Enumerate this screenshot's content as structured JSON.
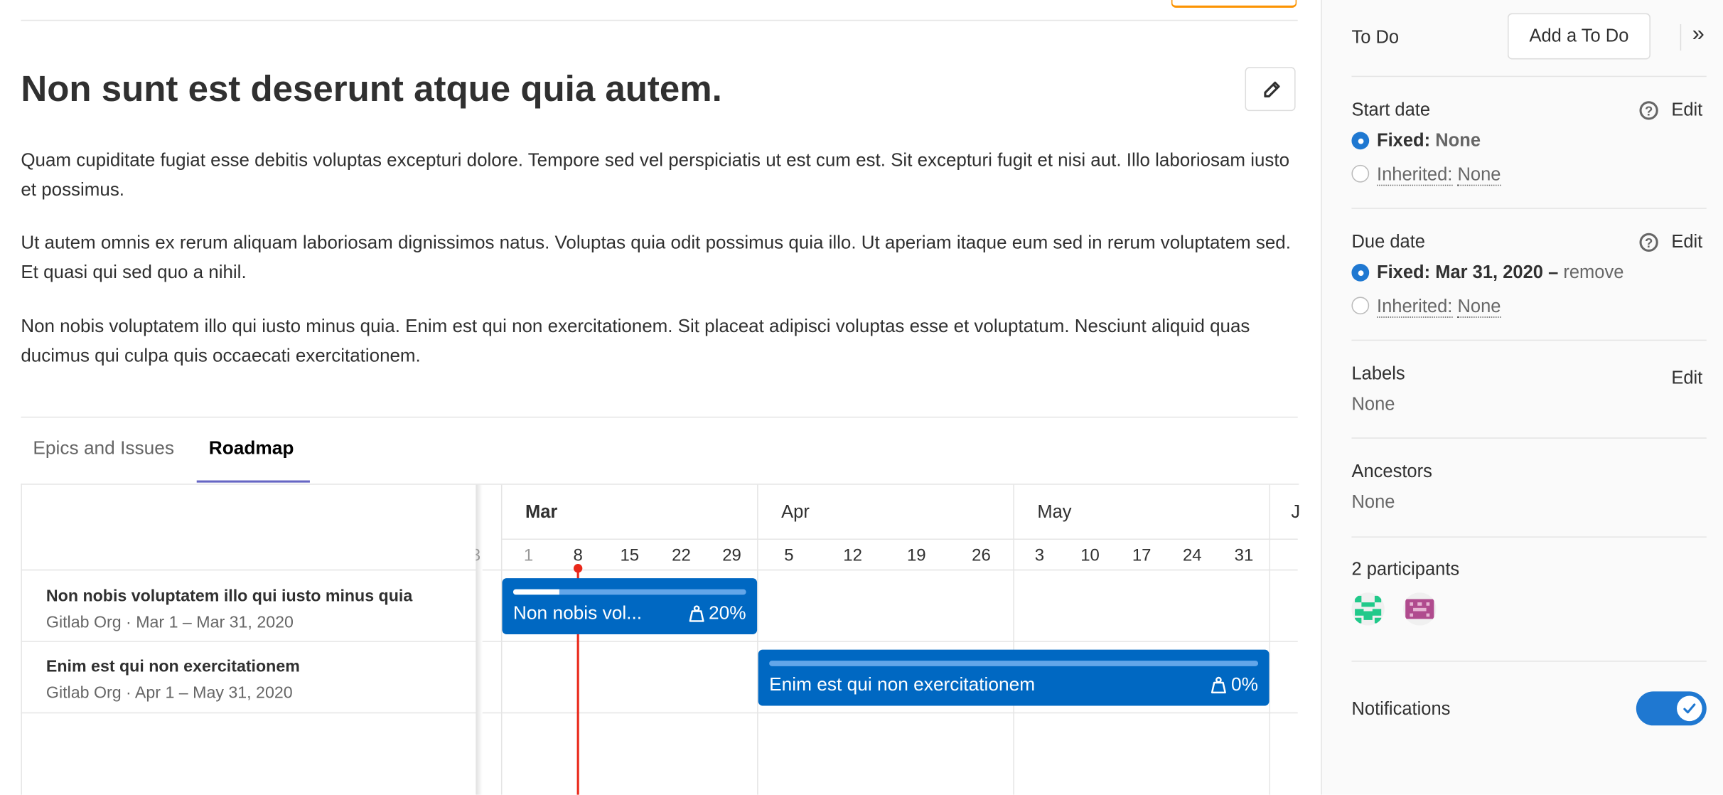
{
  "issue": {
    "title": "Non sunt est deserunt atque quia autem.",
    "paragraphs": [
      "Quam cupiditate fugiat esse debitis voluptas excepturi dolore. Tempore sed vel perspiciatis ut est cum est. Sit excepturi fugit et nisi aut. Illo laboriosam iusto et possimus.",
      "Ut autem omnis ex rerum aliquam laboriosam dignissimos natus. Voluptas quia odit possimus quia illo. Ut aperiam itaque eum sed in rerum voluptatem sed. Et quasi qui sed quo a nihil.",
      "Non nobis voluptatem illo qui iusto minus quia. Enim est qui non exercitationem. Sit placeat adipisci voluptas esse et voluptatum. Nesciunt aliquid quas ducimus qui culpa quis occaecati exercitationem."
    ],
    "edit_icon": "pencil-icon"
  },
  "tabs": [
    {
      "label": "Epics and Issues",
      "active": false
    },
    {
      "label": "Roadmap",
      "active": true
    }
  ],
  "roadmap": {
    "months": [
      "Mar",
      "Apr",
      "May",
      "J"
    ],
    "weeks": [
      "3",
      "1",
      "8",
      "15",
      "22",
      "29",
      "5",
      "12",
      "19",
      "26",
      "3",
      "10",
      "17",
      "24",
      "31"
    ],
    "today_color": "#e9281a",
    "epics": [
      {
        "title": "Non nobis voluptatem illo qui iusto minus quia",
        "meta": "Gitlab Org · Mar 1 – Mar 31, 2020",
        "bar_label": "Non nobis vol...",
        "progress_label": "20%",
        "progress": 0.2
      },
      {
        "title": "Enim est qui non exercitationem",
        "meta": "Gitlab Org · Apr 1 – May 31, 2020",
        "bar_label": "Enim est qui non exercitationem",
        "progress_label": "0%",
        "progress": 0
      }
    ],
    "bar_color": "#0068c2"
  },
  "sidebar": {
    "todo_label": "To Do",
    "add_todo": "Add a To Do",
    "collapse_icon": "»",
    "start_date": {
      "label": "Start date",
      "edit": "Edit",
      "fixed_label": "Fixed:",
      "fixed_value": "None",
      "inherited_label": "Inherited:",
      "inherited_value": "None"
    },
    "due_date": {
      "label": "Due date",
      "edit": "Edit",
      "fixed_label": "Fixed:",
      "fixed_value": "Mar 31, 2020",
      "dash": "–",
      "remove": "remove",
      "inherited_label": "Inherited:",
      "inherited_value": "None"
    },
    "labels": {
      "label": "Labels",
      "edit": "Edit",
      "value": "None"
    },
    "ancestors": {
      "label": "Ancestors",
      "value": "None"
    },
    "participants": {
      "label": "2 participants"
    },
    "notifications": {
      "label": "Notifications",
      "enabled": true
    }
  }
}
